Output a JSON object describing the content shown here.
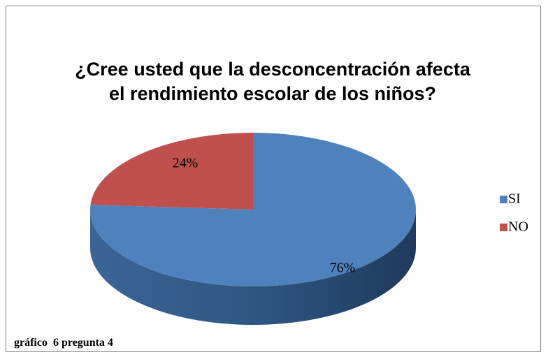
{
  "chart_data": {
    "type": "pie",
    "title": "¿Cree usted que la desconcentración afecta el rendimiento escolar de los niños?",
    "categories": [
      "SI",
      "NO"
    ],
    "values": [
      76,
      24
    ],
    "value_labels": [
      "76%",
      "24%"
    ],
    "colors": [
      "#4f81bd",
      "#c0504d"
    ],
    "caption": "gráfico  6 pregunta 4"
  }
}
